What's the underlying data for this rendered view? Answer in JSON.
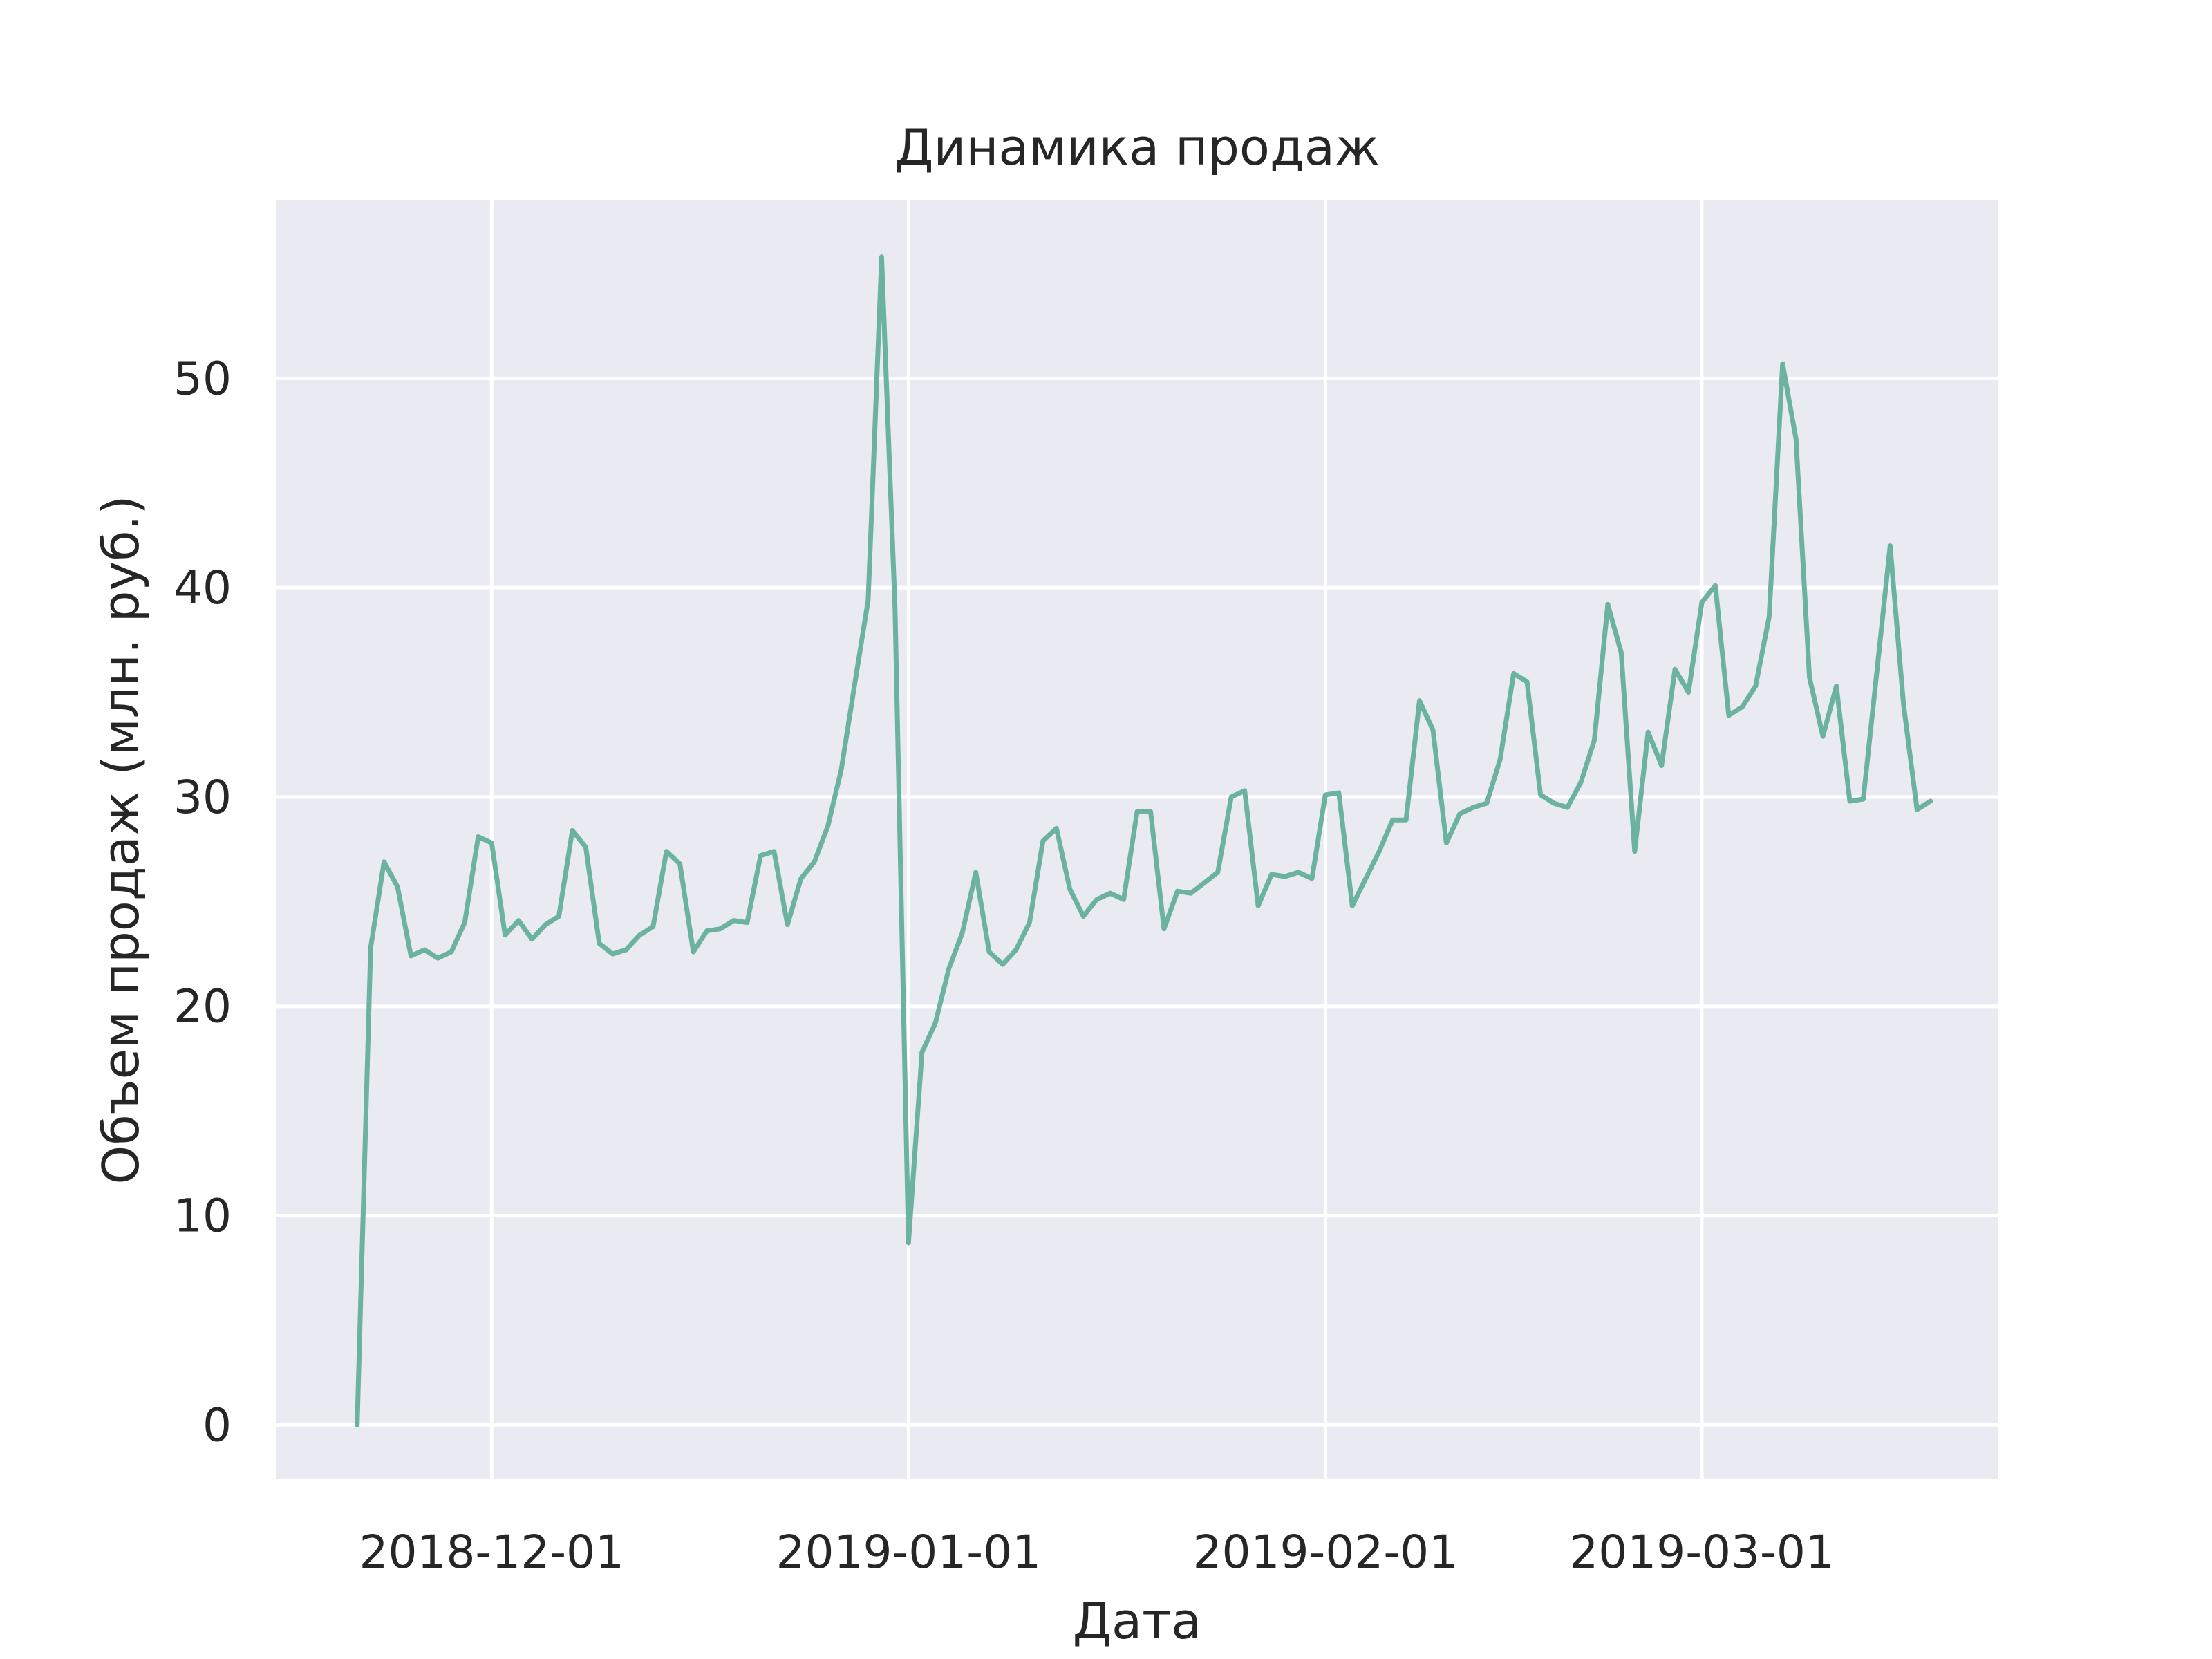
{
  "chart_data": {
    "type": "line",
    "title": "Динамика продаж",
    "xlabel": "Дата",
    "ylabel": "Объем продаж (млн. руб.)",
    "x_tick_labels": [
      "2018-12-01",
      "2019-01-01",
      "2019-02-01",
      "2019-03-01"
    ],
    "y_ticks": [
      0,
      10,
      20,
      30,
      40,
      50
    ],
    "ylim": [
      -2.6,
      58.5
    ],
    "xlim": [
      "2018-11-15",
      "2019-03-23"
    ],
    "grid": true,
    "colors": {
      "background": "#eaeaf2",
      "line": "#6bb2a0",
      "grid": "#ffffff",
      "text": "#262626"
    },
    "series": [
      {
        "x": [
          "2018-11-21",
          "2018-11-22",
          "2018-11-23",
          "2018-11-24",
          "2018-11-25",
          "2018-11-26",
          "2018-11-27",
          "2018-11-28",
          "2018-11-29",
          "2018-11-30",
          "2018-12-01",
          "2018-12-02",
          "2018-12-03",
          "2018-12-04",
          "2018-12-05",
          "2018-12-06",
          "2018-12-07",
          "2018-12-08",
          "2018-12-09",
          "2018-12-10",
          "2018-12-11",
          "2018-12-12",
          "2018-12-13",
          "2018-12-14",
          "2018-12-15",
          "2018-12-16",
          "2018-12-17",
          "2018-12-18",
          "2018-12-19",
          "2018-12-20",
          "2018-12-21",
          "2018-12-22",
          "2018-12-23",
          "2018-12-24",
          "2018-12-25",
          "2018-12-26",
          "2018-12-27",
          "2018-12-28",
          "2018-12-29",
          "2018-12-30",
          "2018-12-31",
          "2019-01-01",
          "2019-01-02",
          "2019-01-03",
          "2019-01-04",
          "2019-01-05",
          "2019-01-06",
          "2019-01-07",
          "2019-01-08",
          "2019-01-09",
          "2019-01-10",
          "2019-01-11",
          "2019-01-12",
          "2019-01-13",
          "2019-01-14",
          "2019-01-15",
          "2019-01-16",
          "2019-01-17",
          "2019-01-18",
          "2019-01-19",
          "2019-01-20",
          "2019-01-21",
          "2019-01-22",
          "2019-01-23",
          "2019-01-24",
          "2019-01-25",
          "2019-01-26",
          "2019-01-27",
          "2019-01-28",
          "2019-01-29",
          "2019-01-30",
          "2019-01-31",
          "2019-02-01",
          "2019-02-02",
          "2019-02-03",
          "2019-02-04",
          "2019-02-05",
          "2019-02-06",
          "2019-02-07",
          "2019-02-08",
          "2019-02-09",
          "2019-02-10",
          "2019-02-11",
          "2019-02-12",
          "2019-02-13",
          "2019-02-14",
          "2019-02-15",
          "2019-02-16",
          "2019-02-17",
          "2019-02-18",
          "2019-02-19",
          "2019-02-20",
          "2019-02-21",
          "2019-02-22",
          "2019-02-23",
          "2019-02-24",
          "2019-02-25",
          "2019-02-26",
          "2019-02-27",
          "2019-02-28",
          "2019-03-01",
          "2019-03-02",
          "2019-03-03",
          "2019-03-04",
          "2019-03-05",
          "2019-03-06",
          "2019-03-07",
          "2019-03-08",
          "2019-03-09",
          "2019-03-10",
          "2019-03-11",
          "2019-03-12",
          "2019-03-13",
          "2019-03-14",
          "2019-03-15",
          "2019-03-16",
          "2019-03-17",
          "2019-03-18"
        ],
        "values": [
          0.0,
          22.8,
          26.9,
          25.7,
          22.4,
          22.7,
          22.3,
          22.6,
          24.0,
          28.1,
          27.8,
          23.4,
          24.1,
          23.2,
          23.9,
          24.3,
          28.4,
          27.6,
          23.0,
          22.5,
          22.7,
          23.4,
          23.8,
          27.4,
          26.8,
          22.6,
          23.6,
          23.7,
          24.1,
          24.0,
          27.2,
          27.4,
          23.9,
          26.1,
          26.9,
          28.6,
          31.3,
          35.4,
          39.4,
          55.8,
          39.0,
          8.7,
          17.8,
          19.2,
          21.8,
          23.5,
          26.4,
          22.6,
          22.0,
          22.7,
          24.0,
          27.9,
          28.5,
          25.6,
          24.3,
          25.1,
          25.4,
          25.1,
          29.3,
          29.3,
          23.7,
          25.5,
          25.4,
          25.9,
          26.4,
          30.0,
          30.3,
          24.8,
          26.3,
          26.2,
          26.4,
          26.1,
          30.1,
          30.2,
          24.8,
          26.1,
          27.4,
          28.9,
          28.9,
          34.6,
          33.2,
          27.8,
          29.2,
          29.5,
          29.7,
          31.8,
          35.9,
          35.5,
          30.1,
          29.7,
          29.5,
          30.7,
          32.7,
          39.2,
          36.9,
          27.4,
          33.1,
          31.5,
          36.1,
          35.0,
          39.3,
          40.1,
          33.9,
          34.3,
          35.3,
          38.6,
          50.7,
          47.1,
          35.7,
          32.9,
          35.3,
          29.8,
          29.9,
          35.9,
          42.0,
          34.4,
          29.4,
          29.8
        ]
      }
    ]
  }
}
